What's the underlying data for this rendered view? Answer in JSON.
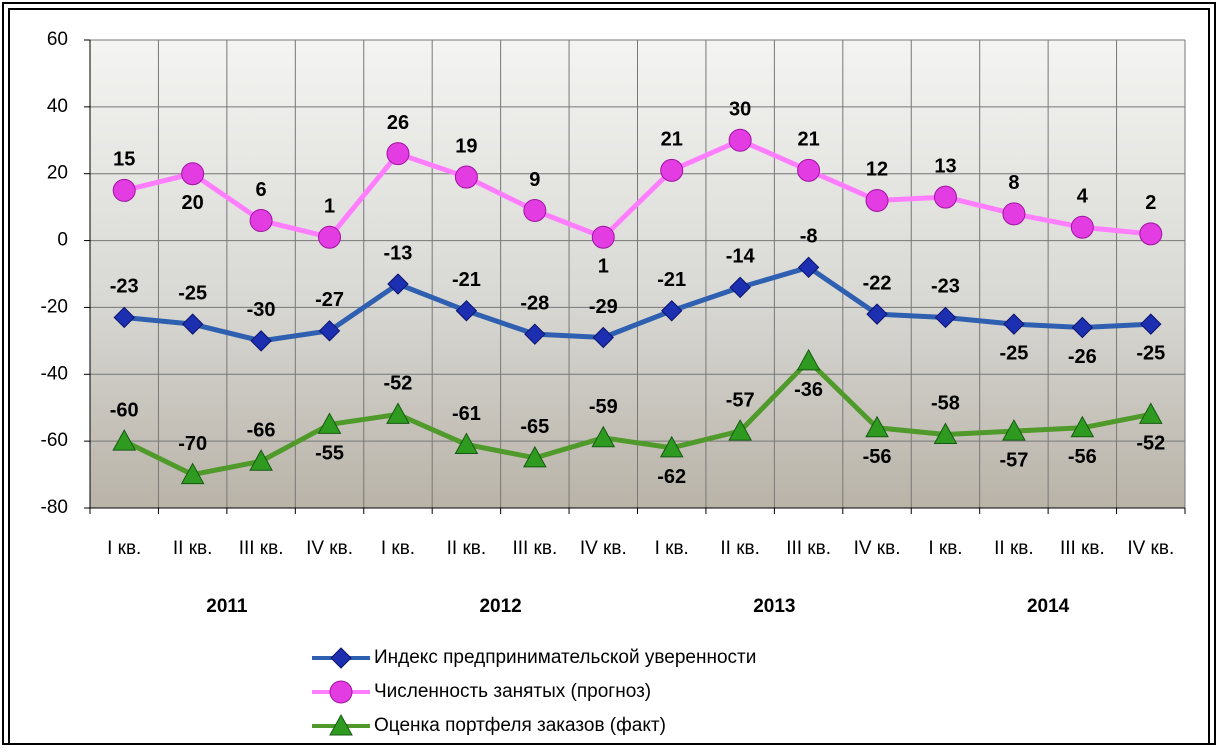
{
  "chart_data": {
    "type": "line",
    "categories": [
      "I кв.",
      "II кв.",
      "III кв.",
      "IV кв.",
      "I кв.",
      "II кв.",
      "III кв.",
      "IV кв.",
      "I кв.",
      "II кв.",
      "III кв.",
      "IV кв.",
      "I кв.",
      "II кв.",
      "III кв.",
      "IV кв."
    ],
    "groups": [
      "2011",
      "2012",
      "2013",
      "2014"
    ],
    "series": [
      {
        "name": "Индекс предпринимательской уверенности",
        "color": "#2f5fb0",
        "marker": "diamond",
        "values": [
          -23,
          -25,
          -30,
          -27,
          -13,
          -21,
          -28,
          -29,
          -21,
          -14,
          -8,
          -22,
          -23,
          -25,
          -26,
          -25
        ]
      },
      {
        "name": "Численность занятых (прогноз)",
        "color": "#ff7dff",
        "marker": "circle",
        "values": [
          15,
          20,
          6,
          1,
          26,
          19,
          9,
          1,
          21,
          30,
          21,
          12,
          13,
          8,
          4,
          2
        ]
      },
      {
        "name": "Оценка портфеля заказов (факт)",
        "color": "#4f9a2a",
        "marker": "triangle",
        "values": [
          -60,
          -70,
          -66,
          -55,
          -52,
          -61,
          -65,
          -59,
          -62,
          -57,
          -36,
          -56,
          -58,
          -57,
          -56,
          -52
        ]
      }
    ],
    "ylim": [
      -80,
      60
    ],
    "yticks": [
      -80,
      -60,
      -40,
      -20,
      0,
      20,
      40,
      60
    ],
    "grid": true
  }
}
